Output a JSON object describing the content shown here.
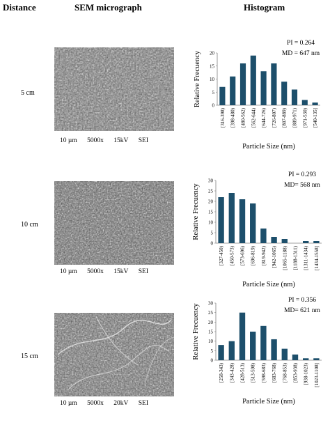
{
  "headers": {
    "distance": "Distance",
    "sem": "SEM micrograph",
    "histogram": "Histogram"
  },
  "rows": [
    {
      "distance": "5 cm",
      "caption": [
        "10 µm",
        "5000x",
        "15kV",
        "SEI"
      ]
    },
    {
      "distance": "10 cm",
      "caption": [
        "10 µm",
        "5000x",
        "15kV",
        "SEI"
      ]
    },
    {
      "distance": "15 cm",
      "caption": [
        "10 µm",
        "5000x",
        "20kV",
        "SEI"
      ]
    }
  ],
  "colors": {
    "bar": "#1d4f6b"
  },
  "chart_data": [
    {
      "type": "bar",
      "pi": "PI = 0.264",
      "md": "MD = 647 nm",
      "xlabel": "Particle Size (nm)",
      "ylabel": "Relative Frecuency",
      "ylim": [
        0,
        20
      ],
      "yticks": [
        0,
        5,
        10,
        15,
        20
      ],
      "categories": [
        "[316-398)",
        "[398-480)",
        "[480-562)",
        "[562-644)",
        "[644-726)",
        "[726-807)",
        "[807-889)",
        "[889-971)",
        "[971-530)",
        "[540-135]"
      ],
      "values": [
        7,
        11,
        16,
        19,
        13,
        16,
        9,
        6,
        2,
        1
      ]
    },
    {
      "type": "bar",
      "pi": "PI = 0.293",
      "md": "MD= 568 nm",
      "xlabel": "Particle Size (nm)",
      "ylabel": "Relative Frecuency",
      "ylim": [
        0,
        30
      ],
      "yticks": [
        0,
        5,
        10,
        15,
        20,
        25,
        30
      ],
      "categories": [
        "[327-450)",
        "[450-573)",
        "[573-696)",
        "[696-819)",
        "[819-942)",
        "[942-1065)",
        "[1065-1188)",
        "[1188-1311)",
        "[1311-1434)",
        "[1434-1558]"
      ],
      "values": [
        22,
        24,
        21,
        19,
        7,
        3,
        2,
        0,
        1,
        1
      ]
    },
    {
      "type": "bar",
      "pi": "PI = 0.356",
      "md": "MD= 621 nm",
      "xlabel": "Particle Size (nm)",
      "ylabel": "Relative Frecuency",
      "ylim": [
        0,
        30
      ],
      "yticks": [
        0,
        5,
        10,
        15,
        20,
        25,
        30
      ],
      "categories": [
        "[258-343)",
        "[343-428)",
        "[428-513)",
        "[513-598)",
        "[598-683)",
        "[683-768)",
        "[768-853)",
        "[853-938)",
        "[938-1023)",
        "[1023-1108]"
      ],
      "values": [
        8,
        10,
        25,
        15,
        18,
        11,
        6,
        3,
        1,
        1
      ]
    }
  ]
}
